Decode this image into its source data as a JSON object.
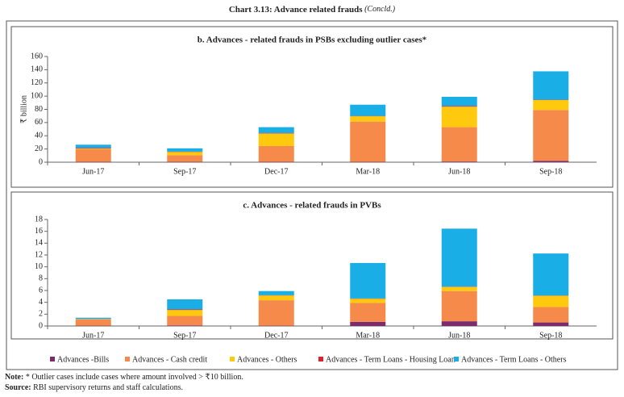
{
  "header": {
    "title": "Chart 3.13: Advance related frauds",
    "title_note": "(Concld.)"
  },
  "chart_data": [
    {
      "type": "stacked-bar",
      "title": "b. Advances - related frauds in PSBs excluding outlier cases*",
      "y_label": "₹ billion",
      "categories": [
        "Jun-17",
        "Sep-17",
        "Dec-17",
        "Mar-18",
        "Jun-18",
        "Sep-18"
      ],
      "ylim": [
        0,
        160
      ],
      "yticks": [
        0,
        20,
        40,
        60,
        80,
        100,
        120,
        140,
        160
      ],
      "series": [
        {
          "color": "#7b2c6f",
          "values": [
            0.5,
            0.5,
            0.5,
            0.5,
            1,
            2
          ]
        },
        {
          "color": "#f58a4b",
          "values": [
            19,
            10,
            24,
            61,
            52,
            77
          ]
        },
        {
          "color": "#ffc90e",
          "values": [
            1,
            5,
            19,
            8,
            31,
            15
          ]
        },
        {
          "color": "#e0202c",
          "values": [
            1,
            0.5,
            0.5,
            0.5,
            1,
            0.5
          ]
        },
        {
          "color": "#1aaee6",
          "values": [
            5,
            5,
            9,
            17,
            14,
            43
          ]
        }
      ]
    },
    {
      "type": "stacked-bar",
      "title": "c. Advances - related frauds in PVBs",
      "categories": [
        "Jun-17",
        "Sep-17",
        "Dec-17",
        "Mar-18",
        "Jun-18",
        "Sep-18"
      ],
      "ylim": [
        0,
        18
      ],
      "yticks": [
        0,
        2,
        4,
        6,
        8,
        10,
        12,
        14,
        16,
        18
      ],
      "series": [
        {
          "name": "Advances -Bills",
          "color": "#7b2c6f",
          "values": [
            0.05,
            0.1,
            0.05,
            0.7,
            0.8,
            0.6
          ]
        },
        {
          "name": "Advances - Cash credit",
          "color": "#f58a4b",
          "values": [
            1.1,
            1.6,
            4.3,
            3.2,
            5.1,
            2.6
          ]
        },
        {
          "name": "Advances - Others",
          "color": "#ffc90e",
          "values": [
            0.05,
            1,
            0.8,
            0.7,
            0.7,
            1.9
          ]
        },
        {
          "name": "Advances - Term Loans - Housing Loan",
          "color": "#e0202c",
          "values": [
            0,
            0.1,
            0.05,
            0.05,
            0.05,
            0.05
          ]
        },
        {
          "name": "Advances - Term Loans - Others",
          "color": "#1aaee6",
          "values": [
            0.2,
            1.7,
            0.7,
            6.0,
            9.8,
            7.1
          ]
        }
      ]
    }
  ],
  "notes": [
    {
      "label": "Note:",
      "text": "* Outlier cases include cases where amount involved > ₹10 billion."
    },
    {
      "label": "Source:",
      "text": "RBI supervisory returns and staff calculations."
    }
  ]
}
